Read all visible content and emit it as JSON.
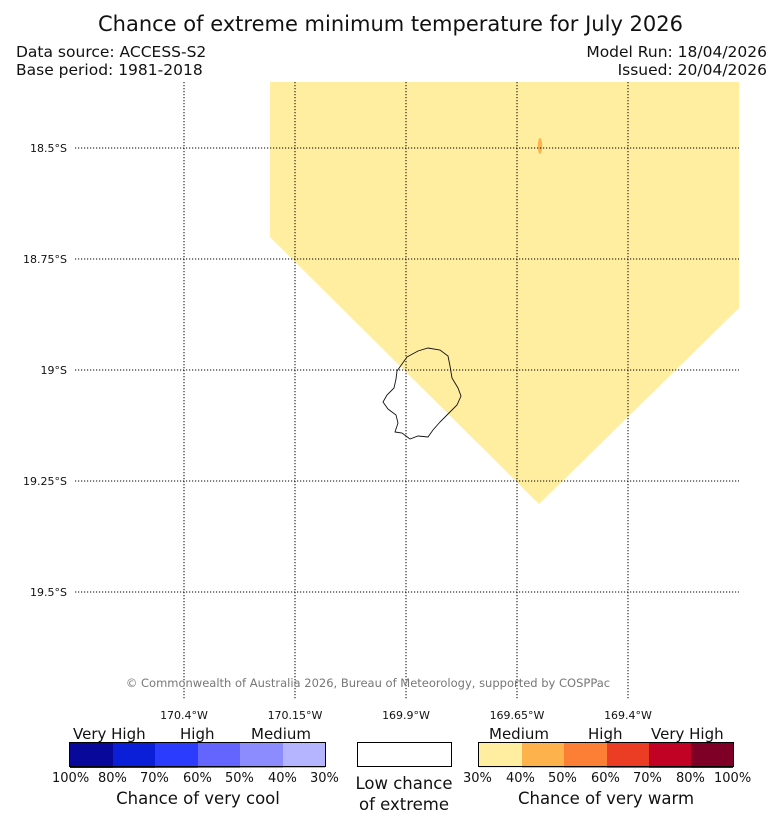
{
  "header": {
    "title": "Chance of extreme minimum temperature for July 2026",
    "data_source": "Data source: ACCESS-S2",
    "base_period": "Base period: 1981-2018",
    "model_run": "Model Run: 18/04/2026",
    "issued": "Issued: 20/04/2026"
  },
  "map": {
    "latitude_labels": [
      "18.5°S",
      "18.75°S",
      "19°S",
      "19.25°S",
      "19.5°S"
    ],
    "longitude_labels": [
      "170.4°W",
      "170.15°W",
      "169.9°W",
      "169.65°W",
      "169.4°W"
    ],
    "shaded_category": "Medium chance of very warm (30%-40%)",
    "shade_color": "#ffeda0",
    "spot_color": "#feb24c",
    "copyright": "© Commonwealth of Australia 2026, Bureau of Meteorology, supported by COSPPac"
  },
  "legend": {
    "cool": {
      "tiers": [
        "Very High",
        "High",
        "Medium"
      ],
      "colors": [
        "#08089a",
        "#0b1fd8",
        "#2c3cff",
        "#6464ff",
        "#8c8cff",
        "#b4b4ff"
      ],
      "ticks": [
        "100%",
        "80%",
        "70%",
        "60%",
        "50%",
        "40%",
        "30%"
      ],
      "title": "Chance of very cool"
    },
    "neutral": {
      "title_line1": "Low chance",
      "title_line2": "of extreme",
      "color": "#ffffff"
    },
    "warm": {
      "tiers": [
        "Medium",
        "High",
        "Very High"
      ],
      "colors": [
        "#ffeda0",
        "#feb24c",
        "#fd7f36",
        "#ea3d24",
        "#c10224",
        "#7f0027"
      ],
      "ticks": [
        "30%",
        "40%",
        "50%",
        "60%",
        "70%",
        "80%",
        "100%"
      ],
      "title": "Chance of very warm"
    }
  }
}
